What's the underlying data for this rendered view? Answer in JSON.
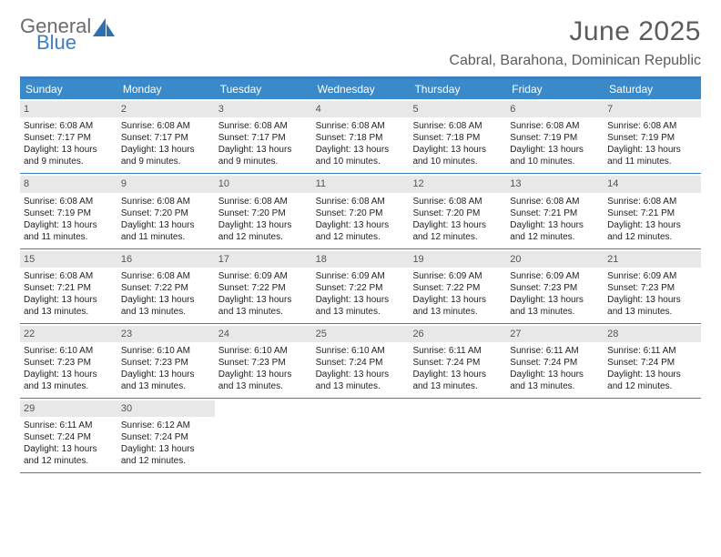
{
  "logo": {
    "general": "General",
    "blue": "Blue"
  },
  "title": "June 2025",
  "location": "Cabral, Barahona, Dominican Republic",
  "colors": {
    "accent": "#3a7fc4",
    "header_bg": "#3a8ac9",
    "daynum_bg": "#e8e8e8",
    "text_muted": "#5c5c5c",
    "text": "#222222",
    "bg": "#ffffff"
  },
  "typography": {
    "title_fontsize": 30,
    "location_fontsize": 16,
    "dow_fontsize": 12,
    "daynum_fontsize": 11,
    "cell_fontsize": 10
  },
  "dow": [
    "Sunday",
    "Monday",
    "Tuesday",
    "Wednesday",
    "Thursday",
    "Friday",
    "Saturday"
  ],
  "weeks": [
    [
      {
        "n": "1",
        "sr": "Sunrise: 6:08 AM",
        "ss": "Sunset: 7:17 PM",
        "d1": "Daylight: 13 hours",
        "d2": "and 9 minutes."
      },
      {
        "n": "2",
        "sr": "Sunrise: 6:08 AM",
        "ss": "Sunset: 7:17 PM",
        "d1": "Daylight: 13 hours",
        "d2": "and 9 minutes."
      },
      {
        "n": "3",
        "sr": "Sunrise: 6:08 AM",
        "ss": "Sunset: 7:17 PM",
        "d1": "Daylight: 13 hours",
        "d2": "and 9 minutes."
      },
      {
        "n": "4",
        "sr": "Sunrise: 6:08 AM",
        "ss": "Sunset: 7:18 PM",
        "d1": "Daylight: 13 hours",
        "d2": "and 10 minutes."
      },
      {
        "n": "5",
        "sr": "Sunrise: 6:08 AM",
        "ss": "Sunset: 7:18 PM",
        "d1": "Daylight: 13 hours",
        "d2": "and 10 minutes."
      },
      {
        "n": "6",
        "sr": "Sunrise: 6:08 AM",
        "ss": "Sunset: 7:19 PM",
        "d1": "Daylight: 13 hours",
        "d2": "and 10 minutes."
      },
      {
        "n": "7",
        "sr": "Sunrise: 6:08 AM",
        "ss": "Sunset: 7:19 PM",
        "d1": "Daylight: 13 hours",
        "d2": "and 11 minutes."
      }
    ],
    [
      {
        "n": "8",
        "sr": "Sunrise: 6:08 AM",
        "ss": "Sunset: 7:19 PM",
        "d1": "Daylight: 13 hours",
        "d2": "and 11 minutes."
      },
      {
        "n": "9",
        "sr": "Sunrise: 6:08 AM",
        "ss": "Sunset: 7:20 PM",
        "d1": "Daylight: 13 hours",
        "d2": "and 11 minutes."
      },
      {
        "n": "10",
        "sr": "Sunrise: 6:08 AM",
        "ss": "Sunset: 7:20 PM",
        "d1": "Daylight: 13 hours",
        "d2": "and 12 minutes."
      },
      {
        "n": "11",
        "sr": "Sunrise: 6:08 AM",
        "ss": "Sunset: 7:20 PM",
        "d1": "Daylight: 13 hours",
        "d2": "and 12 minutes."
      },
      {
        "n": "12",
        "sr": "Sunrise: 6:08 AM",
        "ss": "Sunset: 7:20 PM",
        "d1": "Daylight: 13 hours",
        "d2": "and 12 minutes."
      },
      {
        "n": "13",
        "sr": "Sunrise: 6:08 AM",
        "ss": "Sunset: 7:21 PM",
        "d1": "Daylight: 13 hours",
        "d2": "and 12 minutes."
      },
      {
        "n": "14",
        "sr": "Sunrise: 6:08 AM",
        "ss": "Sunset: 7:21 PM",
        "d1": "Daylight: 13 hours",
        "d2": "and 12 minutes."
      }
    ],
    [
      {
        "n": "15",
        "sr": "Sunrise: 6:08 AM",
        "ss": "Sunset: 7:21 PM",
        "d1": "Daylight: 13 hours",
        "d2": "and 13 minutes."
      },
      {
        "n": "16",
        "sr": "Sunrise: 6:08 AM",
        "ss": "Sunset: 7:22 PM",
        "d1": "Daylight: 13 hours",
        "d2": "and 13 minutes."
      },
      {
        "n": "17",
        "sr": "Sunrise: 6:09 AM",
        "ss": "Sunset: 7:22 PM",
        "d1": "Daylight: 13 hours",
        "d2": "and 13 minutes."
      },
      {
        "n": "18",
        "sr": "Sunrise: 6:09 AM",
        "ss": "Sunset: 7:22 PM",
        "d1": "Daylight: 13 hours",
        "d2": "and 13 minutes."
      },
      {
        "n": "19",
        "sr": "Sunrise: 6:09 AM",
        "ss": "Sunset: 7:22 PM",
        "d1": "Daylight: 13 hours",
        "d2": "and 13 minutes."
      },
      {
        "n": "20",
        "sr": "Sunrise: 6:09 AM",
        "ss": "Sunset: 7:23 PM",
        "d1": "Daylight: 13 hours",
        "d2": "and 13 minutes."
      },
      {
        "n": "21",
        "sr": "Sunrise: 6:09 AM",
        "ss": "Sunset: 7:23 PM",
        "d1": "Daylight: 13 hours",
        "d2": "and 13 minutes."
      }
    ],
    [
      {
        "n": "22",
        "sr": "Sunrise: 6:10 AM",
        "ss": "Sunset: 7:23 PM",
        "d1": "Daylight: 13 hours",
        "d2": "and 13 minutes."
      },
      {
        "n": "23",
        "sr": "Sunrise: 6:10 AM",
        "ss": "Sunset: 7:23 PM",
        "d1": "Daylight: 13 hours",
        "d2": "and 13 minutes."
      },
      {
        "n": "24",
        "sr": "Sunrise: 6:10 AM",
        "ss": "Sunset: 7:23 PM",
        "d1": "Daylight: 13 hours",
        "d2": "and 13 minutes."
      },
      {
        "n": "25",
        "sr": "Sunrise: 6:10 AM",
        "ss": "Sunset: 7:24 PM",
        "d1": "Daylight: 13 hours",
        "d2": "and 13 minutes."
      },
      {
        "n": "26",
        "sr": "Sunrise: 6:11 AM",
        "ss": "Sunset: 7:24 PM",
        "d1": "Daylight: 13 hours",
        "d2": "and 13 minutes."
      },
      {
        "n": "27",
        "sr": "Sunrise: 6:11 AM",
        "ss": "Sunset: 7:24 PM",
        "d1": "Daylight: 13 hours",
        "d2": "and 13 minutes."
      },
      {
        "n": "28",
        "sr": "Sunrise: 6:11 AM",
        "ss": "Sunset: 7:24 PM",
        "d1": "Daylight: 13 hours",
        "d2": "and 12 minutes."
      }
    ],
    [
      {
        "n": "29",
        "sr": "Sunrise: 6:11 AM",
        "ss": "Sunset: 7:24 PM",
        "d1": "Daylight: 13 hours",
        "d2": "and 12 minutes."
      },
      {
        "n": "30",
        "sr": "Sunrise: 6:12 AM",
        "ss": "Sunset: 7:24 PM",
        "d1": "Daylight: 13 hours",
        "d2": "and 12 minutes."
      },
      {
        "empty": true
      },
      {
        "empty": true
      },
      {
        "empty": true
      },
      {
        "empty": true
      },
      {
        "empty": true
      }
    ]
  ]
}
